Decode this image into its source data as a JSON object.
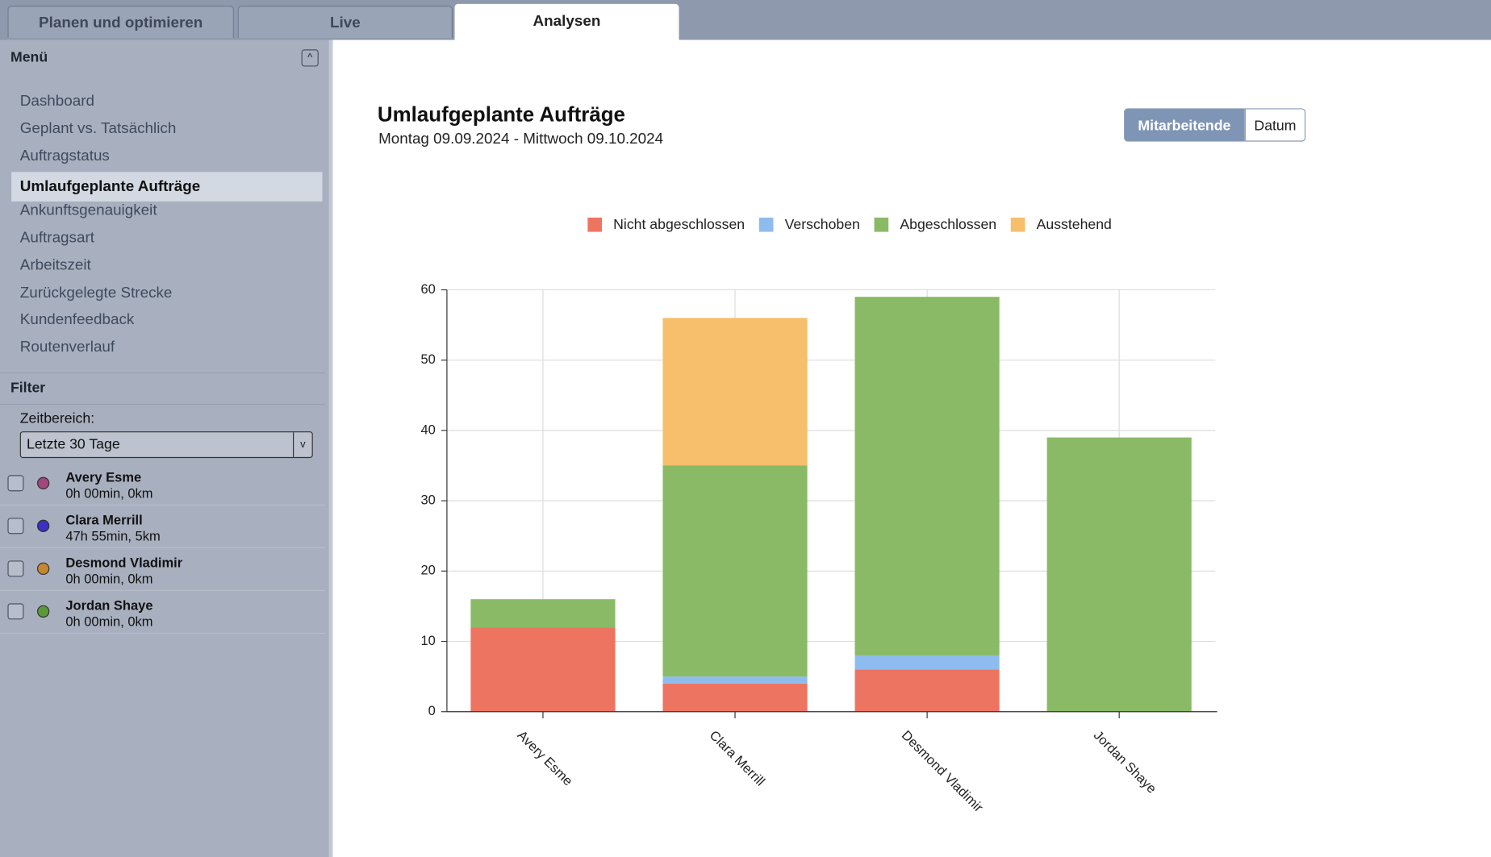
{
  "tabs": [
    {
      "label": "Planen und optimieren",
      "active": false
    },
    {
      "label": "Live",
      "active": false
    },
    {
      "label": "Analysen",
      "active": true
    }
  ],
  "sidebar": {
    "menu_title": "Menü",
    "menu": [
      {
        "label": "Dashboard"
      },
      {
        "label": "Geplant vs. Tatsächlich"
      },
      {
        "label": "Auftragstatus"
      },
      {
        "label": "Umlaufgeplante Aufträge",
        "selected": true
      },
      {
        "label": "Ankunftsgenauigkeit"
      },
      {
        "label": "Auftragsart"
      },
      {
        "label": "Arbeitszeit"
      },
      {
        "label": "Zurückgelegte Strecke"
      },
      {
        "label": "Kundenfeedback"
      },
      {
        "label": "Routenverlauf"
      }
    ],
    "filter": {
      "title": "Filter",
      "range_label": "Zeitbereich:",
      "range_value": "Letzte 30 Tage",
      "employees": [
        {
          "name": "Avery Esme",
          "stats": "0h 00min, 0km",
          "color": "#a3467e"
        },
        {
          "name": "Clara Merrill",
          "stats": "47h 55min, 5km",
          "color": "#3b2fc4"
        },
        {
          "name": "Desmond Vladimir",
          "stats": "0h 00min, 0km",
          "color": "#c68633"
        },
        {
          "name": "Jordan Shaye",
          "stats": "0h 00min, 0km",
          "color": "#5b9a37"
        }
      ]
    }
  },
  "view_toggle": [
    {
      "label": "Mitarbeitende",
      "active": true
    },
    {
      "label": "Datum",
      "active": false
    }
  ],
  "chart_data": {
    "type": "stacked_bar",
    "title": "Umlaufgeplante Aufträge",
    "subtitle": "Montag 09.09.2024 - Mittwoch 09.10.2024",
    "categories": [
      "Avery Esme",
      "Clara Merrill",
      "Desmond Vladimir",
      "Jordan Shaye"
    ],
    "series": [
      {
        "name": "Nicht abgeschlossen",
        "color": "#ee7462",
        "values": [
          12,
          4,
          6,
          0
        ]
      },
      {
        "name": "Verschoben",
        "color": "#8fbcee",
        "values": [
          0,
          1,
          2,
          0
        ]
      },
      {
        "name": "Abgeschlossen",
        "color": "#8aba65",
        "values": [
          4,
          30,
          51,
          39
        ]
      },
      {
        "name": "Ausstehend",
        "color": "#f7be6c",
        "values": [
          0,
          21,
          0,
          0
        ]
      }
    ],
    "ylim": [
      0,
      60
    ],
    "yticks": [
      0,
      10,
      20,
      30,
      40,
      50,
      60
    ],
    "grid": true
  }
}
